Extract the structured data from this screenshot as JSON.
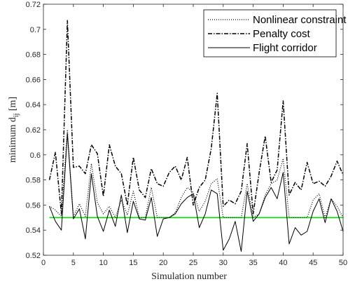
{
  "chart_data": {
    "type": "line",
    "xlabel": "Simulation number",
    "ylabel_main": "minimum d",
    "ylabel_sub": "ij",
    "ylabel_unit": " [m]",
    "xlim": [
      0,
      50
    ],
    "ylim": [
      0.52,
      0.72
    ],
    "xticks": [
      0,
      5,
      10,
      15,
      20,
      25,
      30,
      35,
      40,
      45,
      50
    ],
    "yticks": [
      0.52,
      0.54,
      0.56,
      0.58,
      0.6,
      0.62,
      0.64,
      0.66,
      0.68,
      0.7,
      0.72
    ],
    "ytick_labels": [
      "0.52",
      "0.54",
      "0.56",
      "0.58",
      "0.6",
      "0.62",
      "0.64",
      "0.66",
      "0.68",
      "0.7",
      "0.72"
    ],
    "grid": false,
    "legend_position": "top-right",
    "x": [
      1,
      2,
      3,
      4,
      5,
      6,
      7,
      8,
      9,
      10,
      11,
      12,
      13,
      14,
      15,
      16,
      17,
      18,
      19,
      20,
      21,
      22,
      23,
      24,
      25,
      26,
      27,
      28,
      29,
      30,
      31,
      32,
      33,
      34,
      35,
      36,
      37,
      38,
      39,
      40,
      41,
      42,
      43,
      44,
      45,
      46,
      47,
      48,
      49,
      50
    ],
    "series": [
      {
        "name": "Nonlinear constraint",
        "style": "dotted",
        "color": "#000000",
        "values": [
          0.559,
          0.556,
          0.551,
          0.62,
          0.551,
          0.561,
          0.551,
          0.593,
          0.562,
          0.553,
          0.559,
          0.55,
          0.564,
          0.552,
          0.571,
          0.55,
          0.55,
          0.574,
          0.55,
          0.55,
          0.55,
          0.554,
          0.566,
          0.574,
          0.57,
          0.555,
          0.563,
          0.577,
          0.581,
          0.55,
          0.55,
          0.55,
          0.55,
          0.577,
          0.55,
          0.553,
          0.568,
          0.577,
          0.58,
          0.597,
          0.55,
          0.55,
          0.55,
          0.55,
          0.564,
          0.569,
          0.55,
          0.565,
          0.559,
          0.55
        ]
      },
      {
        "name": "Penalty cost",
        "style": "dashdot",
        "color": "#000000",
        "values": [
          0.58,
          0.602,
          0.553,
          0.707,
          0.59,
          0.591,
          0.585,
          0.608,
          0.601,
          0.567,
          0.608,
          0.591,
          0.585,
          0.56,
          0.598,
          0.572,
          0.566,
          0.589,
          0.577,
          0.575,
          0.586,
          0.591,
          0.58,
          0.598,
          0.56,
          0.574,
          0.58,
          0.605,
          0.649,
          0.559,
          0.564,
          0.561,
          0.571,
          0.609,
          0.553,
          0.586,
          0.615,
          0.578,
          0.588,
          0.643,
          0.568,
          0.578,
          0.572,
          0.594,
          0.577,
          0.579,
          0.575,
          0.583,
          0.595,
          0.584
        ]
      },
      {
        "name": "Flight corridor",
        "style": "solid",
        "color": "#000000",
        "values": [
          0.559,
          0.547,
          0.54,
          0.617,
          0.549,
          0.557,
          0.533,
          0.585,
          0.551,
          0.539,
          0.556,
          0.543,
          0.568,
          0.538,
          0.563,
          0.549,
          0.548,
          0.566,
          0.535,
          0.549,
          0.55,
          0.553,
          0.561,
          0.566,
          0.569,
          0.542,
          0.553,
          0.572,
          0.569,
          0.524,
          0.533,
          0.547,
          0.523,
          0.571,
          0.547,
          0.553,
          0.566,
          0.574,
          0.565,
          0.586,
          0.529,
          0.542,
          0.536,
          0.539,
          0.555,
          0.565,
          0.546,
          0.565,
          0.555,
          0.539
        ]
      }
    ],
    "reference_line": {
      "y": 0.55,
      "color": "#00e000"
    }
  }
}
